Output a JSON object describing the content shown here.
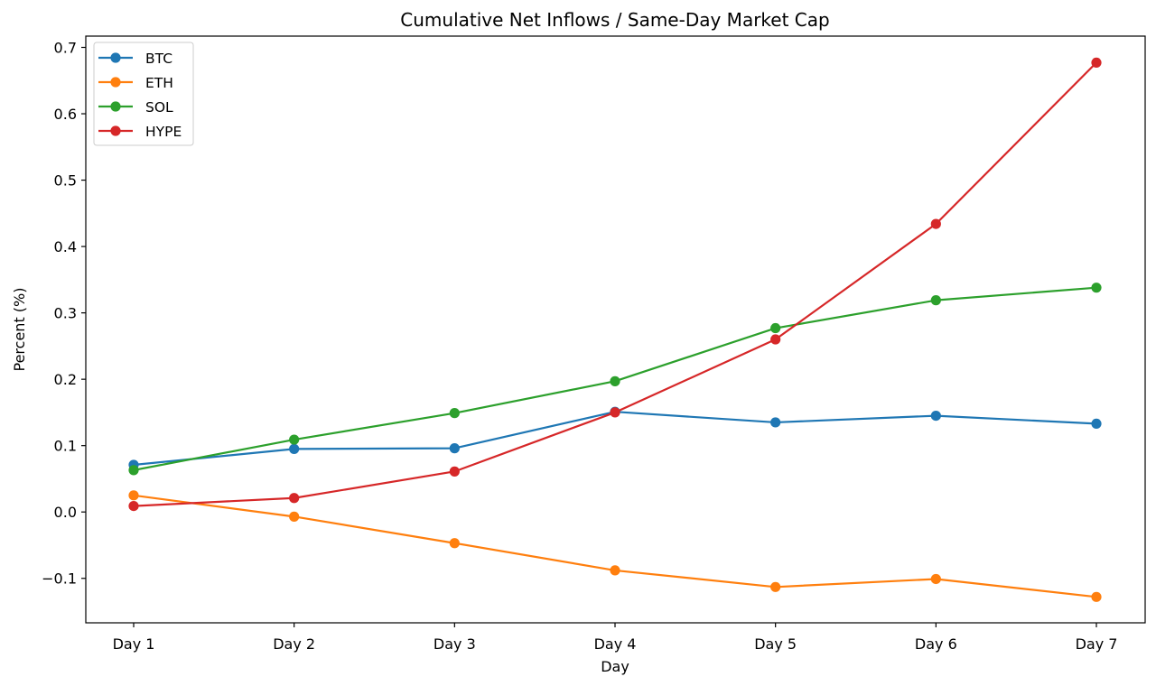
{
  "chart_data": {
    "type": "line",
    "title": "Cumulative Net Inflows / Same-Day Market Cap",
    "xlabel": "Day",
    "ylabel": "Percent (%)",
    "categories": [
      "Day 1",
      "Day 2",
      "Day 3",
      "Day 4",
      "Day 5",
      "Day 6",
      "Day 7"
    ],
    "ylim": [
      -0.167,
      0.717
    ],
    "yticks": [
      -0.1,
      0.0,
      0.1,
      0.2,
      0.3,
      0.4,
      0.5,
      0.6,
      0.7
    ],
    "ytick_labels": [
      "−0.1",
      "0.0",
      "0.1",
      "0.2",
      "0.3",
      "0.4",
      "0.5",
      "0.6",
      "0.7"
    ],
    "grid": false,
    "legend_position": "top-left",
    "marker": "circle",
    "series": [
      {
        "name": "BTC",
        "color": "#1f77b4",
        "values": [
          0.071,
          0.095,
          0.096,
          0.151,
          0.135,
          0.145,
          0.133
        ]
      },
      {
        "name": "ETH",
        "color": "#ff7f0e",
        "values": [
          0.025,
          -0.007,
          -0.047,
          -0.088,
          -0.113,
          -0.101,
          -0.128
        ]
      },
      {
        "name": "SOL",
        "color": "#2ca02c",
        "values": [
          0.063,
          0.109,
          0.149,
          0.197,
          0.277,
          0.319,
          0.338
        ]
      },
      {
        "name": "HYPE",
        "color": "#d62728",
        "values": [
          0.009,
          0.021,
          0.061,
          0.15,
          0.26,
          0.434,
          0.677
        ]
      }
    ]
  }
}
